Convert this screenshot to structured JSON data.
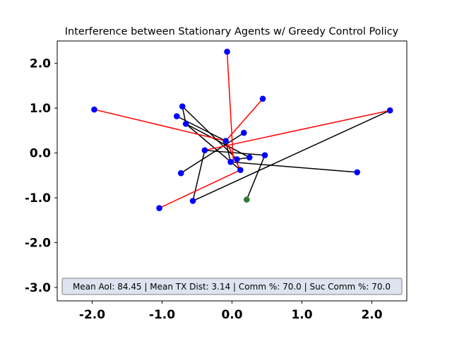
{
  "chart_data": {
    "type": "scatter",
    "title": "Interference between Stationary Agents w/ Greedy Control Policy",
    "xlabel": "",
    "ylabel": "",
    "xlim": [
      -2.5,
      2.5
    ],
    "ylim": [
      -3.3,
      2.5
    ],
    "x_ticks": [
      -2.0,
      -1.0,
      0.0,
      1.0,
      2.0
    ],
    "x_tick_labels": [
      "-2.0",
      "-1.0",
      "0.0",
      "1.0",
      "2.0"
    ],
    "y_ticks": [
      2.0,
      1.0,
      0.0,
      -1.0,
      -2.0,
      -3.0
    ],
    "y_tick_labels": [
      "2.0",
      "1.0",
      "0.0",
      "-1.0",
      "-2.0",
      "-3.0"
    ],
    "grid": false,
    "stats_text": "Mean AoI: 84.45 | Mean TX Dist: 3.14 | Comm %: 70.0 | Suc Comm %: 70.0",
    "colors": {
      "agent": "#0000ff",
      "base_station": "#2e7d32",
      "link_black": "#000000",
      "link_red": "#ff0000",
      "stats_box_fill": "#dde4ef",
      "stats_box_stroke": "#7f7f7f"
    },
    "agents": [
      {
        "x": -0.07,
        "y": 2.26
      },
      {
        "x": 0.44,
        "y": 1.21
      },
      {
        "x": -1.97,
        "y": 0.97
      },
      {
        "x": 2.26,
        "y": 0.95
      },
      {
        "x": -0.71,
        "y": 1.04
      },
      {
        "x": -0.79,
        "y": 0.82
      },
      {
        "x": -0.66,
        "y": 0.65
      },
      {
        "x": 0.17,
        "y": 0.45
      },
      {
        "x": -0.09,
        "y": 0.27
      },
      {
        "x": -0.39,
        "y": 0.06
      },
      {
        "x": 0.47,
        "y": -0.05
      },
      {
        "x": 0.25,
        "y": -0.1
      },
      {
        "x": 0.07,
        "y": -0.14
      },
      {
        "x": -0.02,
        "y": -0.2
      },
      {
        "x": 0.12,
        "y": -0.38
      },
      {
        "x": -0.73,
        "y": -0.45
      },
      {
        "x": 1.79,
        "y": -0.43
      },
      {
        "x": -1.04,
        "y": -1.23
      },
      {
        "x": -0.56,
        "y": -1.07
      }
    ],
    "base_station": {
      "x": 0.21,
      "y": -1.04
    },
    "links_black": [
      [
        -0.71,
        1.04,
        -0.66,
        0.65
      ],
      [
        -0.66,
        0.65,
        0.12,
        -0.38
      ],
      [
        -0.79,
        0.82,
        -0.09,
        0.27
      ],
      [
        -0.71,
        1.04,
        0.07,
        -0.14
      ],
      [
        -0.66,
        0.65,
        0.25,
        -0.1
      ],
      [
        -0.39,
        0.06,
        0.47,
        -0.05
      ],
      [
        -0.39,
        0.06,
        -0.56,
        -1.07
      ],
      [
        -0.73,
        -0.45,
        0.17,
        0.45
      ],
      [
        -0.02,
        -0.2,
        1.79,
        -0.43
      ],
      [
        0.21,
        -1.04,
        0.47,
        -0.05
      ],
      [
        -0.56,
        -1.07,
        2.26,
        0.95
      ],
      [
        -0.09,
        0.27,
        -0.02,
        -0.2
      ],
      [
        0.07,
        -0.14,
        0.25,
        -0.1
      ],
      [
        -0.09,
        0.27,
        0.12,
        -0.38
      ]
    ],
    "links_red": [
      [
        -0.07,
        2.26,
        0.02,
        -0.22
      ],
      [
        0.44,
        1.21,
        -0.1,
        0.25
      ],
      [
        -1.97,
        0.97,
        -0.09,
        0.27
      ],
      [
        2.26,
        0.95,
        -0.39,
        0.06
      ],
      [
        -1.04,
        -1.23,
        0.12,
        -0.38
      ],
      [
        -0.09,
        0.27,
        0.12,
        -0.38
      ]
    ]
  }
}
